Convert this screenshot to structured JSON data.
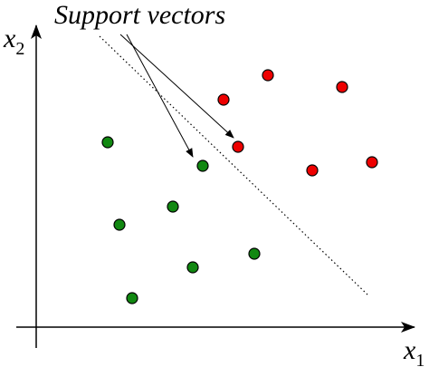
{
  "annotation": "Support vectors",
  "axes": {
    "x": {
      "base": "x",
      "sub": "1"
    },
    "y": {
      "base": "x",
      "sub": "2"
    }
  }
}
